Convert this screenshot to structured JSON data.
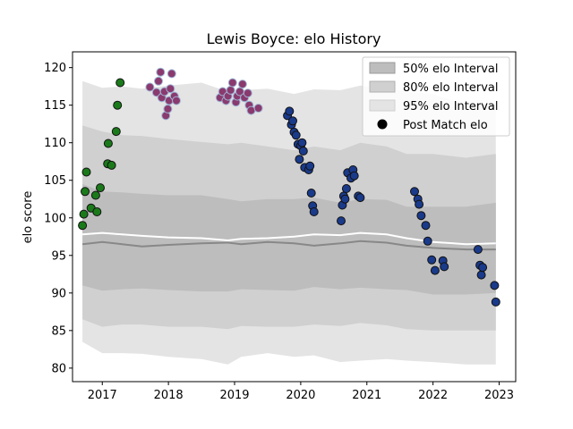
{
  "chart_data": {
    "type": "scatter",
    "title": "Lewis Boyce: elo History",
    "xlabel": "",
    "ylabel": "elo score",
    "xlim": [
      2016.55,
      2023.25
    ],
    "ylim": [
      78.2,
      122.1
    ],
    "x_ticks": [
      2017,
      2018,
      2019,
      2020,
      2021,
      2022,
      2023
    ],
    "x_tick_labels": [
      "2017",
      "2018",
      "2019",
      "2020",
      "2021",
      "2022",
      "2023"
    ],
    "y_ticks": [
      80,
      85,
      90,
      95,
      100,
      105,
      110,
      115,
      120
    ],
    "y_tick_labels": [
      "80",
      "85",
      "90",
      "95",
      "100",
      "105",
      "110",
      "115",
      "120"
    ],
    "grid": false,
    "legend": {
      "position": "top-right",
      "entries": [
        "50% elo Interval",
        "80% elo Interval",
        "95% elo Interval",
        "Post Match elo"
      ]
    },
    "colors": {
      "band95": "#e4e4e4",
      "band80": "#d0d0d0",
      "band50": "#bdbdbd",
      "median_line": "#888888",
      "mean_line": "#ffffff",
      "green_points": "#1a7a1a",
      "pink_points": "#8a3a6e",
      "pink_edge": "#9fb6d6",
      "blue_points": "#1a3a8a"
    },
    "bands": {
      "x": [
        2016.7,
        2017.0,
        2017.3,
        2017.6,
        2018.0,
        2018.5,
        2018.9,
        2019.1,
        2019.5,
        2019.9,
        2020.2,
        2020.6,
        2020.9,
        2021.3,
        2021.6,
        2022.0,
        2022.5,
        2022.95
      ],
      "p95_hi": [
        118.2,
        117.3,
        117.5,
        117.2,
        117.6,
        118.0,
        116.8,
        117.0,
        117.2,
        116.5,
        117.1,
        117.0,
        117.6,
        117.3,
        116.8,
        116.5,
        115.0,
        115.2
      ],
      "p95_lo": [
        83.5,
        82.0,
        82.0,
        81.9,
        81.5,
        81.2,
        80.5,
        81.5,
        82.0,
        81.5,
        81.7,
        80.8,
        81.0,
        81.2,
        81.0,
        80.8,
        80.5,
        80.5
      ],
      "p80_hi": [
        112.3,
        111.5,
        111.0,
        110.9,
        110.5,
        110.1,
        109.8,
        110.0,
        109.5,
        109.0,
        109.5,
        109.0,
        110.0,
        109.5,
        108.5,
        108.5,
        108.0,
        108.5
      ],
      "p80_lo": [
        86.5,
        85.5,
        85.8,
        85.8,
        85.5,
        85.5,
        85.2,
        85.6,
        85.5,
        85.5,
        85.8,
        85.6,
        86.0,
        85.7,
        85.2,
        85.0,
        85.0,
        85.0
      ],
      "p50_hi": [
        104.5,
        103.5,
        103.4,
        103.2,
        103.0,
        103.0,
        102.5,
        102.2,
        102.5,
        102.5,
        102.7,
        102.0,
        102.5,
        102.4,
        101.5,
        101.5,
        101.5,
        102.0
      ],
      "p50_lo": [
        91.0,
        90.3,
        90.5,
        90.6,
        90.4,
        90.2,
        90.2,
        90.5,
        90.4,
        90.3,
        90.8,
        90.5,
        90.7,
        90.5,
        90.4,
        89.8,
        89.8,
        90.0
      ],
      "median": [
        96.5,
        96.8,
        96.5,
        96.2,
        96.4,
        96.6,
        96.7,
        96.5,
        96.8,
        96.6,
        96.3,
        96.6,
        96.9,
        96.7,
        96.3,
        96.0,
        95.8,
        95.8
      ],
      "mean": [
        97.8,
        98.0,
        97.8,
        97.6,
        97.4,
        97.3,
        97.0,
        97.2,
        97.3,
        97.5,
        97.8,
        97.7,
        98.0,
        97.8,
        97.3,
        96.8,
        96.5,
        96.6
      ]
    },
    "series": [
      {
        "name": "Post Match elo",
        "color_key": "green_points",
        "points": [
          [
            2016.7,
            99.0
          ],
          [
            2016.72,
            100.5
          ],
          [
            2016.74,
            103.5
          ],
          [
            2016.76,
            106.1
          ],
          [
            2016.83,
            101.3
          ],
          [
            2016.9,
            103.0
          ],
          [
            2016.92,
            100.8
          ],
          [
            2016.97,
            104.0
          ],
          [
            2017.08,
            107.2
          ],
          [
            2017.09,
            109.9
          ],
          [
            2017.14,
            107.0
          ],
          [
            2017.21,
            111.5
          ],
          [
            2017.23,
            115.0
          ],
          [
            2017.27,
            118.0
          ]
        ]
      },
      {
        "name": "Post Match elo",
        "color_key": "pink_points",
        "points": [
          [
            2017.72,
            117.4
          ],
          [
            2017.82,
            116.7
          ],
          [
            2017.85,
            118.2
          ],
          [
            2017.88,
            119.4
          ],
          [
            2017.9,
            116.0
          ],
          [
            2017.94,
            116.8
          ],
          [
            2017.96,
            113.6
          ],
          [
            2017.99,
            114.5
          ],
          [
            2018.01,
            115.6
          ],
          [
            2018.03,
            117.2
          ],
          [
            2018.05,
            119.2
          ],
          [
            2018.09,
            116.2
          ],
          [
            2018.12,
            115.6
          ],
          [
            2018.78,
            116.0
          ],
          [
            2018.82,
            116.8
          ],
          [
            2018.87,
            115.6
          ],
          [
            2018.9,
            116.2
          ],
          [
            2018.94,
            117.0
          ],
          [
            2018.97,
            118.0
          ],
          [
            2019.02,
            115.4
          ],
          [
            2019.04,
            116.2
          ],
          [
            2019.08,
            116.8
          ],
          [
            2019.12,
            117.8
          ],
          [
            2019.15,
            116.0
          ],
          [
            2019.2,
            116.6
          ],
          [
            2019.22,
            115.0
          ],
          [
            2019.25,
            114.3
          ],
          [
            2019.36,
            114.6
          ]
        ]
      },
      {
        "name": "Post Match elo",
        "color_key": "blue_points",
        "points": [
          [
            2019.8,
            113.6
          ],
          [
            2019.83,
            114.2
          ],
          [
            2019.86,
            112.4
          ],
          [
            2019.88,
            112.9
          ],
          [
            2019.9,
            111.4
          ],
          [
            2019.93,
            111.0
          ],
          [
            2019.96,
            109.8
          ],
          [
            2019.98,
            107.8
          ],
          [
            2020.0,
            109.6
          ],
          [
            2020.02,
            110.0
          ],
          [
            2020.04,
            108.9
          ],
          [
            2020.06,
            106.7
          ],
          [
            2020.12,
            106.4
          ],
          [
            2020.14,
            106.9
          ],
          [
            2020.16,
            103.3
          ],
          [
            2020.18,
            101.6
          ],
          [
            2020.2,
            100.8
          ],
          [
            2020.61,
            99.6
          ],
          [
            2020.63,
            101.7
          ],
          [
            2020.65,
            102.9
          ],
          [
            2020.67,
            102.5
          ],
          [
            2020.69,
            103.9
          ],
          [
            2020.71,
            106.0
          ],
          [
            2020.76,
            105.3
          ],
          [
            2020.79,
            106.4
          ],
          [
            2020.81,
            105.6
          ],
          [
            2020.87,
            102.9
          ],
          [
            2020.9,
            102.7
          ],
          [
            2021.72,
            103.5
          ],
          [
            2021.77,
            102.5
          ],
          [
            2021.79,
            101.8
          ],
          [
            2021.82,
            100.3
          ],
          [
            2021.89,
            99.0
          ],
          [
            2021.92,
            96.9
          ],
          [
            2021.98,
            94.4
          ],
          [
            2022.03,
            93.0
          ],
          [
            2022.15,
            94.3
          ],
          [
            2022.17,
            93.5
          ],
          [
            2022.68,
            95.8
          ],
          [
            2022.71,
            93.7
          ],
          [
            2022.73,
            92.4
          ],
          [
            2022.75,
            93.4
          ],
          [
            2022.93,
            91.0
          ],
          [
            2022.95,
            88.8
          ]
        ]
      }
    ]
  }
}
